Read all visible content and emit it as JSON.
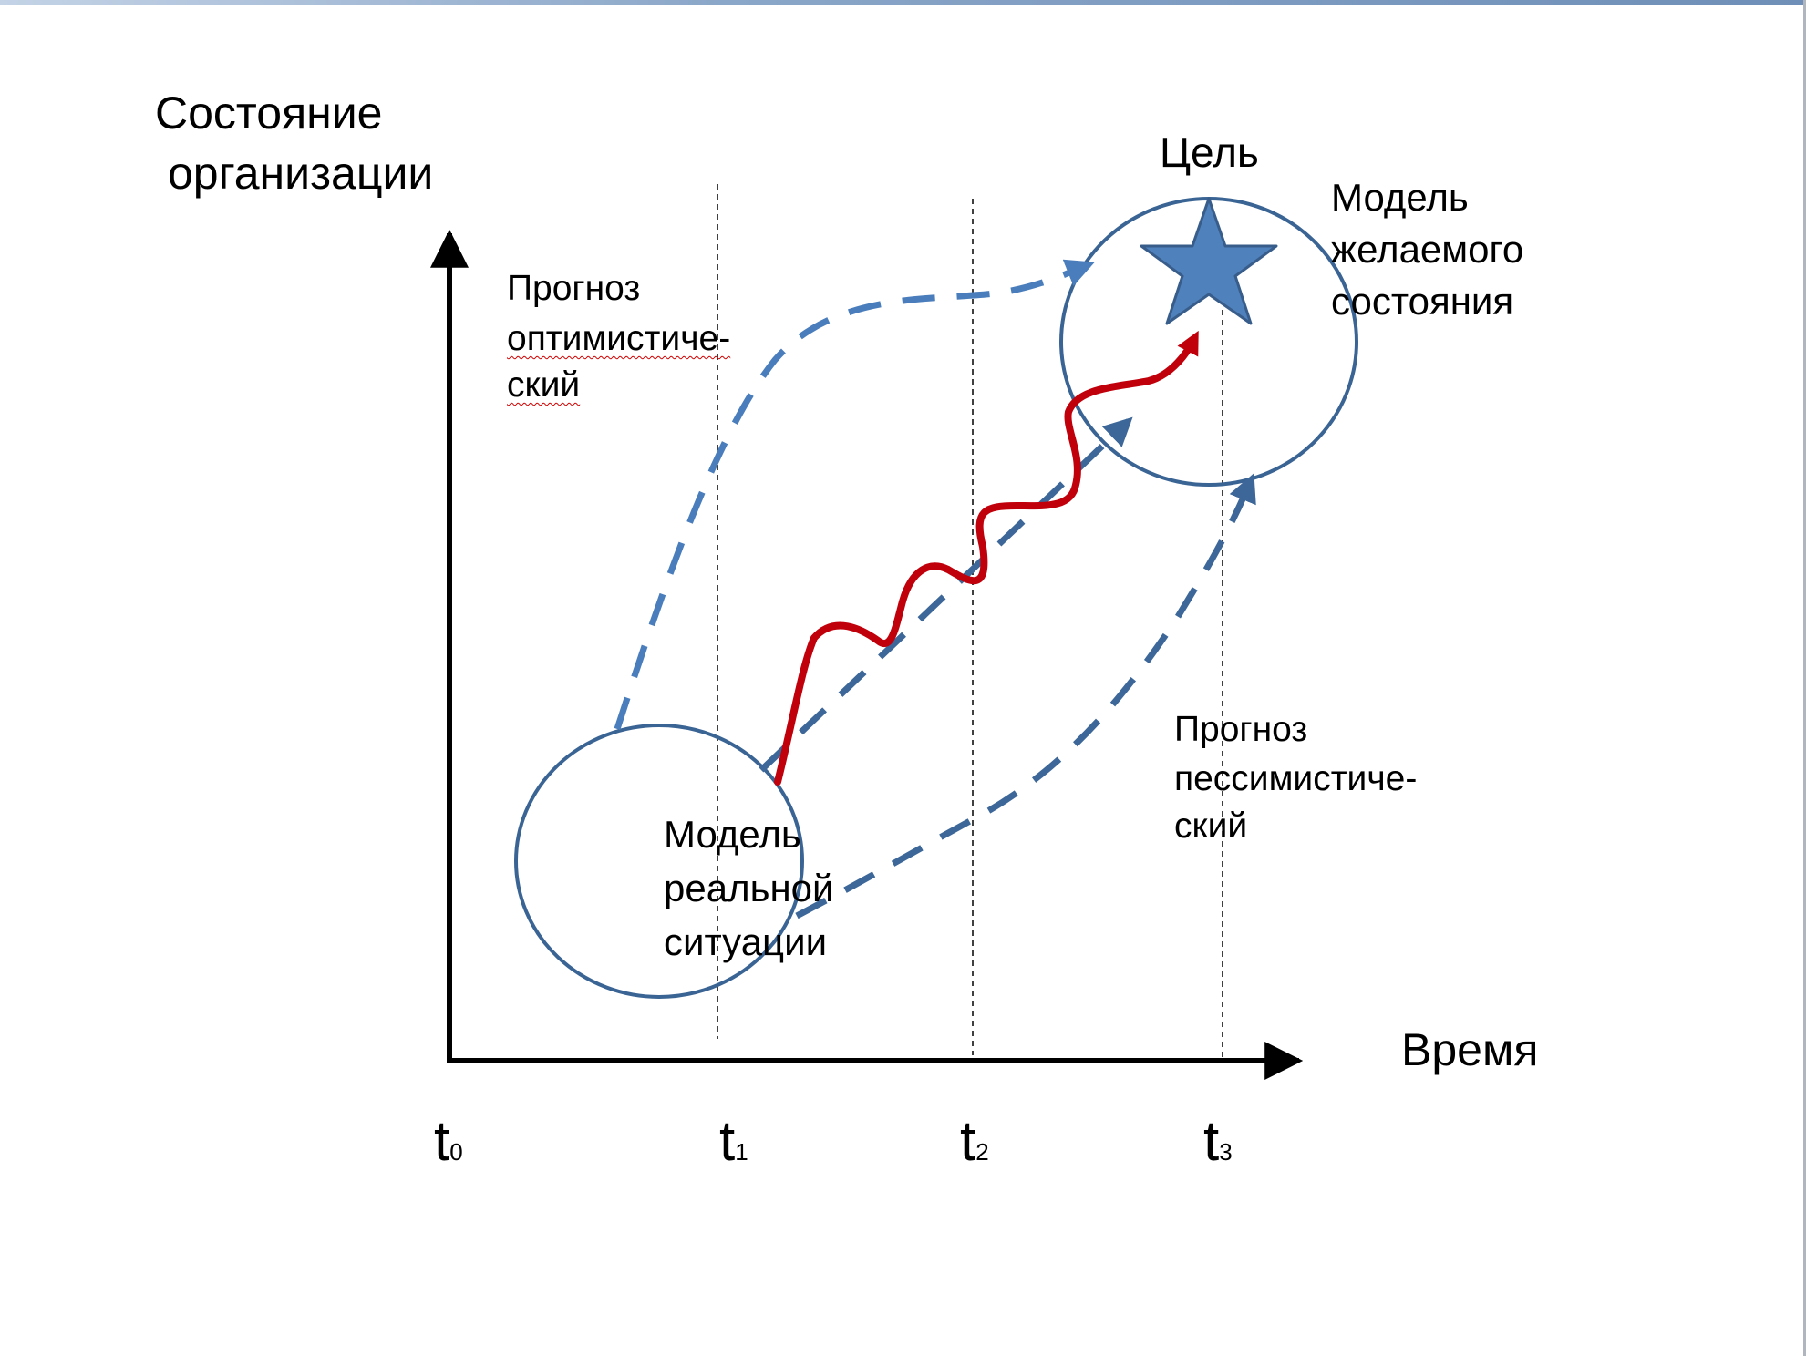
{
  "y_axis_label": [
    "Состояние",
    "организации"
  ],
  "x_axis_label": "Время",
  "time_ticks": [
    {
      "letter": "t",
      "index": "0"
    },
    {
      "letter": "t",
      "index": "1"
    },
    {
      "letter": "t",
      "index": "2"
    },
    {
      "letter": "t",
      "index": "3"
    }
  ],
  "goal_label": "Цель",
  "desired_model_label": [
    "Модель",
    "желаемого",
    "состояния"
  ],
  "real_model_label": [
    "Модель",
    "реальной",
    "ситуации"
  ],
  "optimistic_forecast_label": [
    "Прогноз",
    "оптимистиче-",
    "ский"
  ],
  "pessimistic_forecast_label": [
    "Прогноз",
    "пессимистиче-",
    "ский"
  ],
  "colors": {
    "circle_stroke": "#3a6494",
    "forecast_dash": "#4a7dbb",
    "middle_dash": "#3c6798",
    "actual_path": "#c0000b",
    "star_fill": "#4f81bd",
    "axis": "#000000"
  }
}
